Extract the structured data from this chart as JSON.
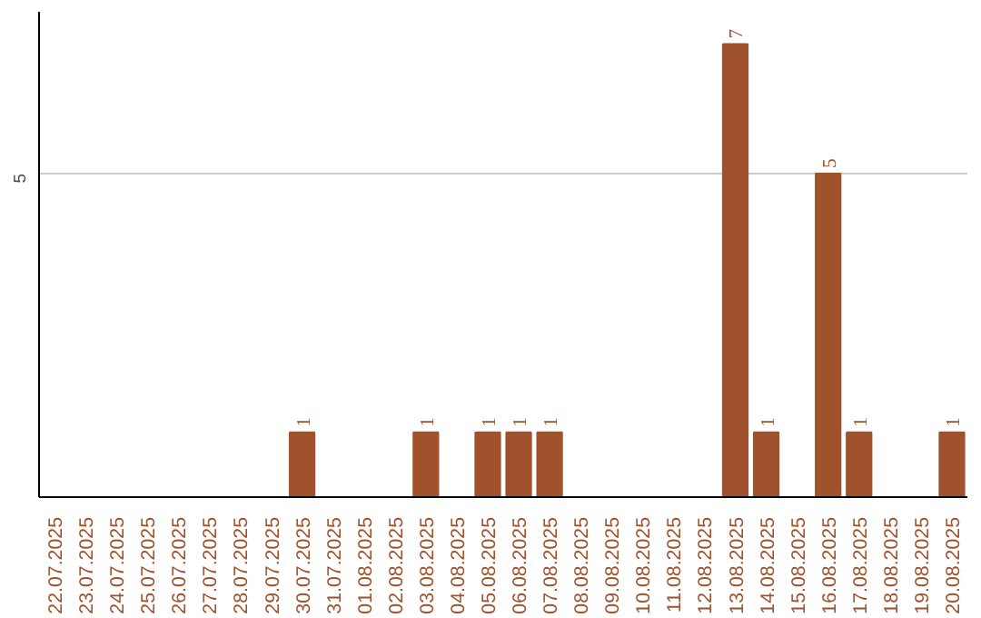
{
  "chart_data": {
    "type": "bar",
    "categories": [
      "22.07.2025",
      "23.07.2025",
      "24.07.2025",
      "25.07.2025",
      "26.07.2025",
      "27.07.2025",
      "28.07.2025",
      "29.07.2025",
      "30.07.2025",
      "31.07.2025",
      "01.08.2025",
      "02.08.2025",
      "03.08.2025",
      "04.08.2025",
      "05.08.2025",
      "06.08.2025",
      "07.08.2025",
      "08.08.2025",
      "09.08.2025",
      "10.08.2025",
      "11.08.2025",
      "12.08.2025",
      "13.08.2025",
      "14.08.2025",
      "15.08.2025",
      "16.08.2025",
      "17.08.2025",
      "18.08.2025",
      "19.08.2025",
      "20.08.2025"
    ],
    "values": [
      0,
      0,
      0,
      0,
      0,
      0,
      0,
      0,
      1,
      0,
      0,
      0,
      1,
      0,
      1,
      1,
      1,
      0,
      0,
      0,
      0,
      0,
      7,
      1,
      0,
      5,
      1,
      0,
      0,
      1
    ],
    "value_labels": [
      null,
      null,
      null,
      null,
      null,
      null,
      null,
      null,
      "1",
      null,
      null,
      null,
      "1",
      null,
      "1",
      "1",
      "1",
      null,
      null,
      null,
      null,
      null,
      "7",
      "1",
      null,
      "5",
      "1",
      null,
      null,
      "1"
    ],
    "color": "#a0522d",
    "ylim": [
      0,
      7.5
    ],
    "yticks": [
      5
    ],
    "grid": "y"
  }
}
